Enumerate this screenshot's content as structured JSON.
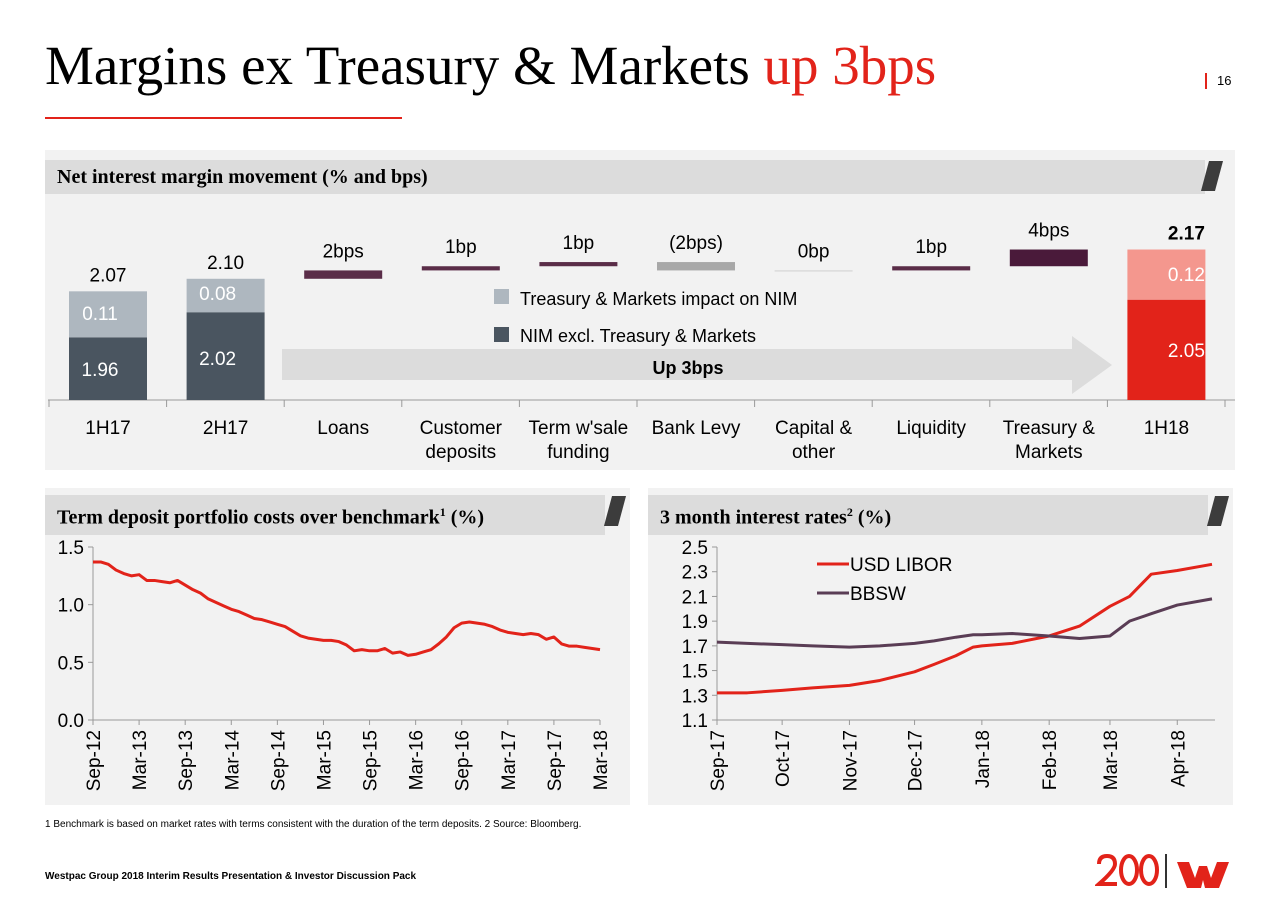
{
  "title": {
    "main": "Margins ex Treasury & Markets ",
    "highlight": "up 3bps"
  },
  "page_number": "16",
  "colors": {
    "accent": "#e2231a",
    "nim_excl": "#4a5560",
    "tm_impact": "#aeb7bf",
    "step_positive": "#5a2d48",
    "step_negative": "#a8a8a8",
    "h18_tm": "#f4978e"
  },
  "top_panel": {
    "header": "Net interest margin movement (% and bps)"
  },
  "left_panel": {
    "header": "Term deposit portfolio costs over benchmark",
    "sup": "1",
    "unit": " (%)"
  },
  "right_panel": {
    "header": "3 month interest rates",
    "sup": "2",
    "unit": " (%)"
  },
  "chart_data": [
    {
      "type": "bar",
      "subtype": "waterfall",
      "legend": [
        "Treasury & Markets impact on NIM",
        "NIM excl. Treasury & Markets"
      ],
      "arrow_label": "Up 3bps",
      "totals": [
        {
          "category": [
            "1H17"
          ],
          "nim_excl": 1.96,
          "tm_impact": 0.11,
          "total": 2.07,
          "labels": [
            "1.96",
            "0.11",
            "2.07"
          ]
        },
        {
          "category": [
            "2H17"
          ],
          "nim_excl": 2.02,
          "tm_impact": 0.08,
          "total": 2.1,
          "labels": [
            "2.02",
            "0.08",
            "2.10"
          ]
        },
        {
          "category": [
            "1H18"
          ],
          "nim_excl": 2.05,
          "tm_impact": 0.12,
          "total": 2.17,
          "labels": [
            "2.05",
            "0.12",
            "2.17"
          ]
        }
      ],
      "steps": [
        {
          "category": [
            "Loans"
          ],
          "from": 2.1,
          "to": 2.12,
          "label": "2bps"
        },
        {
          "category": [
            "Customer",
            "deposits"
          ],
          "from": 2.12,
          "to": 2.13,
          "label": "1bp"
        },
        {
          "category": [
            "Term w'sale",
            "funding"
          ],
          "from": 2.13,
          "to": 2.14,
          "label": "1bp"
        },
        {
          "category": [
            "Bank Levy"
          ],
          "from": 2.14,
          "to": 2.12,
          "label": "(2bps)"
        },
        {
          "category": [
            "Capital &",
            "other"
          ],
          "from": 2.12,
          "to": 2.12,
          "label": "0bp"
        },
        {
          "category": [
            "Liquidity"
          ],
          "from": 2.12,
          "to": 2.13,
          "label": "1bp"
        },
        {
          "category": [
            "Treasury &",
            "Markets"
          ],
          "from": 2.13,
          "to": 2.17,
          "label": "4bps"
        }
      ]
    },
    {
      "type": "line",
      "ylim": [
        0,
        1.5
      ],
      "yticks": [
        "0.0",
        "0.5",
        "1.0",
        "1.5"
      ],
      "xticks": [
        "Sep-12",
        "Mar-13",
        "Sep-13",
        "Mar-14",
        "Sep-14",
        "Mar-15",
        "Sep-15",
        "Mar-16",
        "Sep-16",
        "Mar-17",
        "Sep-17",
        "Mar-18"
      ],
      "x_start": "2012-09",
      "x_step": "monthly",
      "values": [
        1.37,
        1.37,
        1.35,
        1.3,
        1.27,
        1.25,
        1.26,
        1.21,
        1.21,
        1.2,
        1.19,
        1.21,
        1.17,
        1.13,
        1.1,
        1.05,
        1.02,
        0.99,
        0.96,
        0.94,
        0.91,
        0.88,
        0.87,
        0.85,
        0.83,
        0.81,
        0.77,
        0.73,
        0.71,
        0.7,
        0.69,
        0.69,
        0.68,
        0.65,
        0.6,
        0.61,
        0.6,
        0.6,
        0.62,
        0.58,
        0.59,
        0.56,
        0.57,
        0.59,
        0.61,
        0.66,
        0.72,
        0.8,
        0.84,
        0.85,
        0.84,
        0.83,
        0.81,
        0.78,
        0.76,
        0.75,
        0.74,
        0.75,
        0.74,
        0.7,
        0.72,
        0.66,
        0.64,
        0.64,
        0.63,
        0.62,
        0.61
      ],
      "color": "#e2231a"
    },
    {
      "type": "line",
      "ylim": [
        1.1,
        2.5
      ],
      "yticks": [
        "1.1",
        "1.3",
        "1.5",
        "1.7",
        "1.9",
        "2.1",
        "2.3",
        "2.5"
      ],
      "xticks": [
        "Sep-17",
        "Oct-17",
        "Nov-17",
        "Dec-17",
        "Jan-18",
        "Feb-18",
        "Mar-18",
        "Apr-18"
      ],
      "legend": "top-center",
      "x": [
        "2017-09-01",
        "2017-09-15",
        "2017-10-01",
        "2017-10-15",
        "2017-11-01",
        "2017-11-15",
        "2017-12-01",
        "2017-12-10",
        "2017-12-20",
        "2017-12-28",
        "2018-01-01",
        "2018-01-15",
        "2018-02-01",
        "2018-02-15",
        "2018-03-01",
        "2018-03-10",
        "2018-03-20",
        "2018-04-01",
        "2018-04-17"
      ],
      "series": [
        {
          "name": "USD LIBOR",
          "color": "#e2231a",
          "values": [
            1.32,
            1.32,
            1.34,
            1.36,
            1.38,
            1.42,
            1.49,
            1.55,
            1.62,
            1.69,
            1.7,
            1.72,
            1.78,
            1.86,
            2.02,
            2.1,
            2.28,
            2.31,
            2.36
          ]
        },
        {
          "name": "BBSW",
          "color": "#5a3d55",
          "values": [
            1.73,
            1.72,
            1.71,
            1.7,
            1.69,
            1.7,
            1.72,
            1.74,
            1.77,
            1.79,
            1.79,
            1.8,
            1.78,
            1.76,
            1.78,
            1.9,
            1.96,
            2.03,
            2.08
          ]
        }
      ]
    }
  ],
  "footnote": "1 Benchmark is based on market rates with terms consistent with the duration of the term deposits.  2 Source: Bloomberg.",
  "footer": "Westpac Group 2018 Interim Results Presentation & Investor Discussion Pack",
  "logo": {
    "text": "200 W"
  }
}
